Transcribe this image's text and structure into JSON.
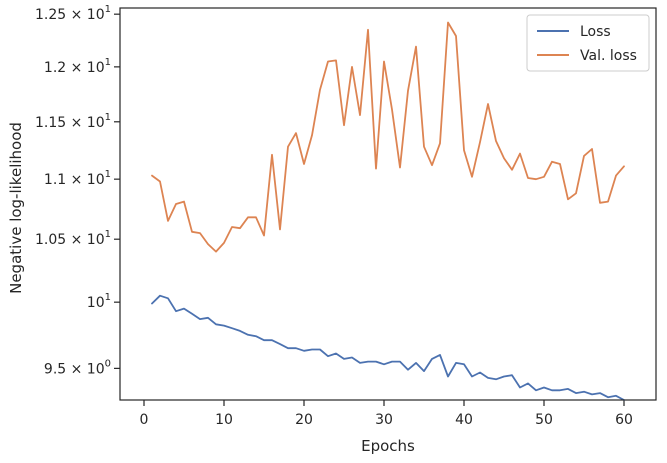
{
  "chart_data": {
    "type": "line",
    "title": "",
    "xlabel": "Epochs",
    "ylabel": "Negative log-likelihood",
    "xlim": [
      -3,
      64
    ],
    "ylim": [
      9.27,
      12.56
    ],
    "yscale": "log",
    "grid": false,
    "legend_position": "top-right",
    "x_ticks": [
      0,
      10,
      20,
      30,
      40,
      50,
      60
    ],
    "x_tick_labels": [
      "0",
      "10",
      "20",
      "30",
      "40",
      "50",
      "60"
    ],
    "y_ticks": [
      {
        "value": 9.5,
        "base": "9.5 × 10",
        "exp": "0"
      },
      {
        "value": 10,
        "base": "10",
        "exp": "1"
      },
      {
        "value": 10.5,
        "base": "1.05 × 10",
        "exp": "1"
      },
      {
        "value": 11,
        "base": "1.1 × 10",
        "exp": "1"
      },
      {
        "value": 11.5,
        "base": "1.15 × 10",
        "exp": "1"
      },
      {
        "value": 12,
        "base": "1.2 × 10",
        "exp": "1"
      },
      {
        "value": 12.5,
        "base": "1.25 × 10",
        "exp": "1"
      }
    ],
    "series": [
      {
        "name": "Loss",
        "color": "#4c72b0",
        "x": [
          1,
          2,
          3,
          4,
          5,
          6,
          7,
          8,
          9,
          10,
          11,
          12,
          13,
          14,
          15,
          16,
          17,
          18,
          19,
          20,
          21,
          22,
          23,
          24,
          25,
          26,
          27,
          28,
          29,
          30,
          31,
          32,
          33,
          34,
          35,
          36,
          37,
          38,
          39,
          40,
          41,
          42,
          43,
          44,
          45,
          46,
          47,
          48,
          49,
          50,
          51,
          52,
          53,
          54,
          55,
          56,
          57,
          58,
          59,
          60
        ],
        "values": [
          9.99,
          10.05,
          10.03,
          9.93,
          9.95,
          9.91,
          9.87,
          9.88,
          9.83,
          9.82,
          9.8,
          9.78,
          9.75,
          9.74,
          9.71,
          9.71,
          9.68,
          9.65,
          9.65,
          9.63,
          9.64,
          9.64,
          9.59,
          9.61,
          9.57,
          9.58,
          9.54,
          9.55,
          9.55,
          9.53,
          9.55,
          9.55,
          9.49,
          9.54,
          9.48,
          9.57,
          9.6,
          9.44,
          9.54,
          9.53,
          9.44,
          9.47,
          9.43,
          9.42,
          9.44,
          9.45,
          9.36,
          9.39,
          9.34,
          9.36,
          9.34,
          9.34,
          9.35,
          9.32,
          9.33,
          9.31,
          9.32,
          9.29,
          9.3,
          9.27
        ]
      },
      {
        "name": "Val. loss",
        "color": "#dd8452",
        "x": [
          1,
          2,
          3,
          4,
          5,
          6,
          7,
          8,
          9,
          10,
          11,
          12,
          13,
          14,
          15,
          16,
          17,
          18,
          19,
          20,
          21,
          22,
          23,
          24,
          25,
          26,
          27,
          28,
          29,
          30,
          31,
          32,
          33,
          34,
          35,
          36,
          37,
          38,
          39,
          40,
          41,
          42,
          43,
          44,
          45,
          46,
          47,
          48,
          49,
          50,
          51,
          52,
          53,
          54,
          55,
          56,
          57,
          58,
          59,
          60
        ],
        "values": [
          11.03,
          10.98,
          10.65,
          10.79,
          10.81,
          10.56,
          10.55,
          10.46,
          10.4,
          10.47,
          10.6,
          10.59,
          10.68,
          10.68,
          10.53,
          11.21,
          10.58,
          11.28,
          11.4,
          11.13,
          11.38,
          11.79,
          12.05,
          12.06,
          11.47,
          12.0,
          11.56,
          12.35,
          11.09,
          12.05,
          11.61,
          11.1,
          11.78,
          12.19,
          11.28,
          11.12,
          11.31,
          12.42,
          12.29,
          11.25,
          11.02,
          11.32,
          11.66,
          11.33,
          11.18,
          11.08,
          11.22,
          11.01,
          11.0,
          11.02,
          11.15,
          11.13,
          10.83,
          10.88,
          11.2,
          11.26,
          10.8,
          10.81,
          11.03,
          11.11
        ]
      }
    ]
  }
}
